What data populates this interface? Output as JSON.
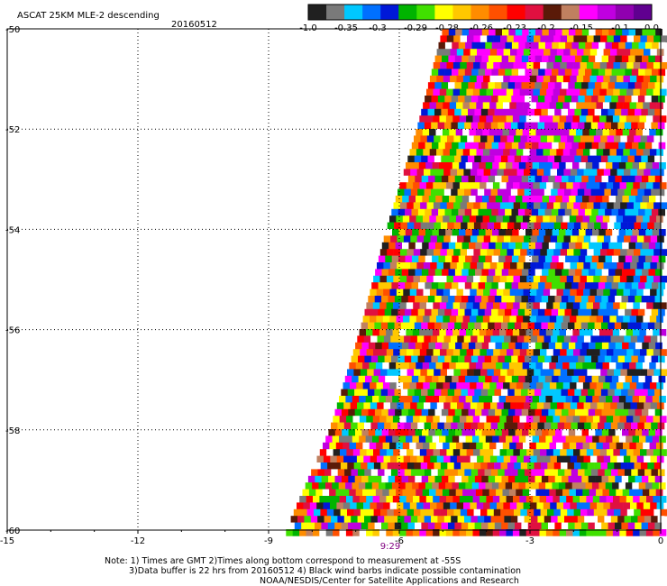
{
  "header": {
    "title": "ASCAT 25KM MLE-2 descending",
    "date": "20160512"
  },
  "colorbar": {
    "colors": [
      "#202020",
      "#7a7a7a",
      "#00c8ff",
      "#0070ff",
      "#0018d8",
      "#00b400",
      "#40e000",
      "#ffff00",
      "#ffc800",
      "#ff8c00",
      "#ff5000",
      "#ff0000",
      "#e01040",
      "#5a1a08",
      "#c08060",
      "#ff00ff",
      "#c000e0",
      "#9000b0",
      "#600090"
    ],
    "tick_labels": [
      "-1.0",
      "-0.35",
      "-0.3",
      "-0.29",
      "-0.28",
      "-0.26",
      "-0.23",
      "-0.2",
      "-0.15",
      "-0.1",
      "0.0"
    ]
  },
  "chart_data": {
    "type": "heatmap",
    "title": "ASCAT 25KM MLE-2 descending",
    "subtitle": "20160512",
    "xlabel": "",
    "ylabel": "",
    "xlim": [
      -15,
      0
    ],
    "ylim": [
      -60,
      -50
    ],
    "grid": true,
    "x_ticks": [
      -15,
      -12,
      -9,
      -6,
      -3,
      0
    ],
    "x_tick_labels": [
      "-15",
      "-12",
      "-9",
      "-6",
      "-3",
      "0"
    ],
    "y_ticks": [
      -50,
      -52,
      -54,
      -56,
      -58,
      -60
    ],
    "y_tick_labels": [
      "-50",
      "-52",
      "-54",
      "-56",
      "-58",
      "-60"
    ],
    "swath_edge": [
      [
        -5.0,
        -50.0
      ],
      [
        -5.6,
        -52.0
      ],
      [
        -6.3,
        -54.0
      ],
      [
        -6.9,
        -56.0
      ],
      [
        -7.6,
        -58.0
      ],
      [
        -8.6,
        -60.0
      ]
    ],
    "pass_time": {
      "label": "9:29",
      "x": -6.0
    },
    "value_range": [
      -1.0,
      0.0
    ]
  },
  "notes": {
    "line1": "Note: 1) Times are GMT 2)Times along bottom correspond to measurement at -55S",
    "line2": "3)Data buffer is 22 hrs from 20160512 4) Black wind barbs indicate possible contamination",
    "line3": "NOAA/NESDIS/Center for Satellite Applications and Research"
  }
}
